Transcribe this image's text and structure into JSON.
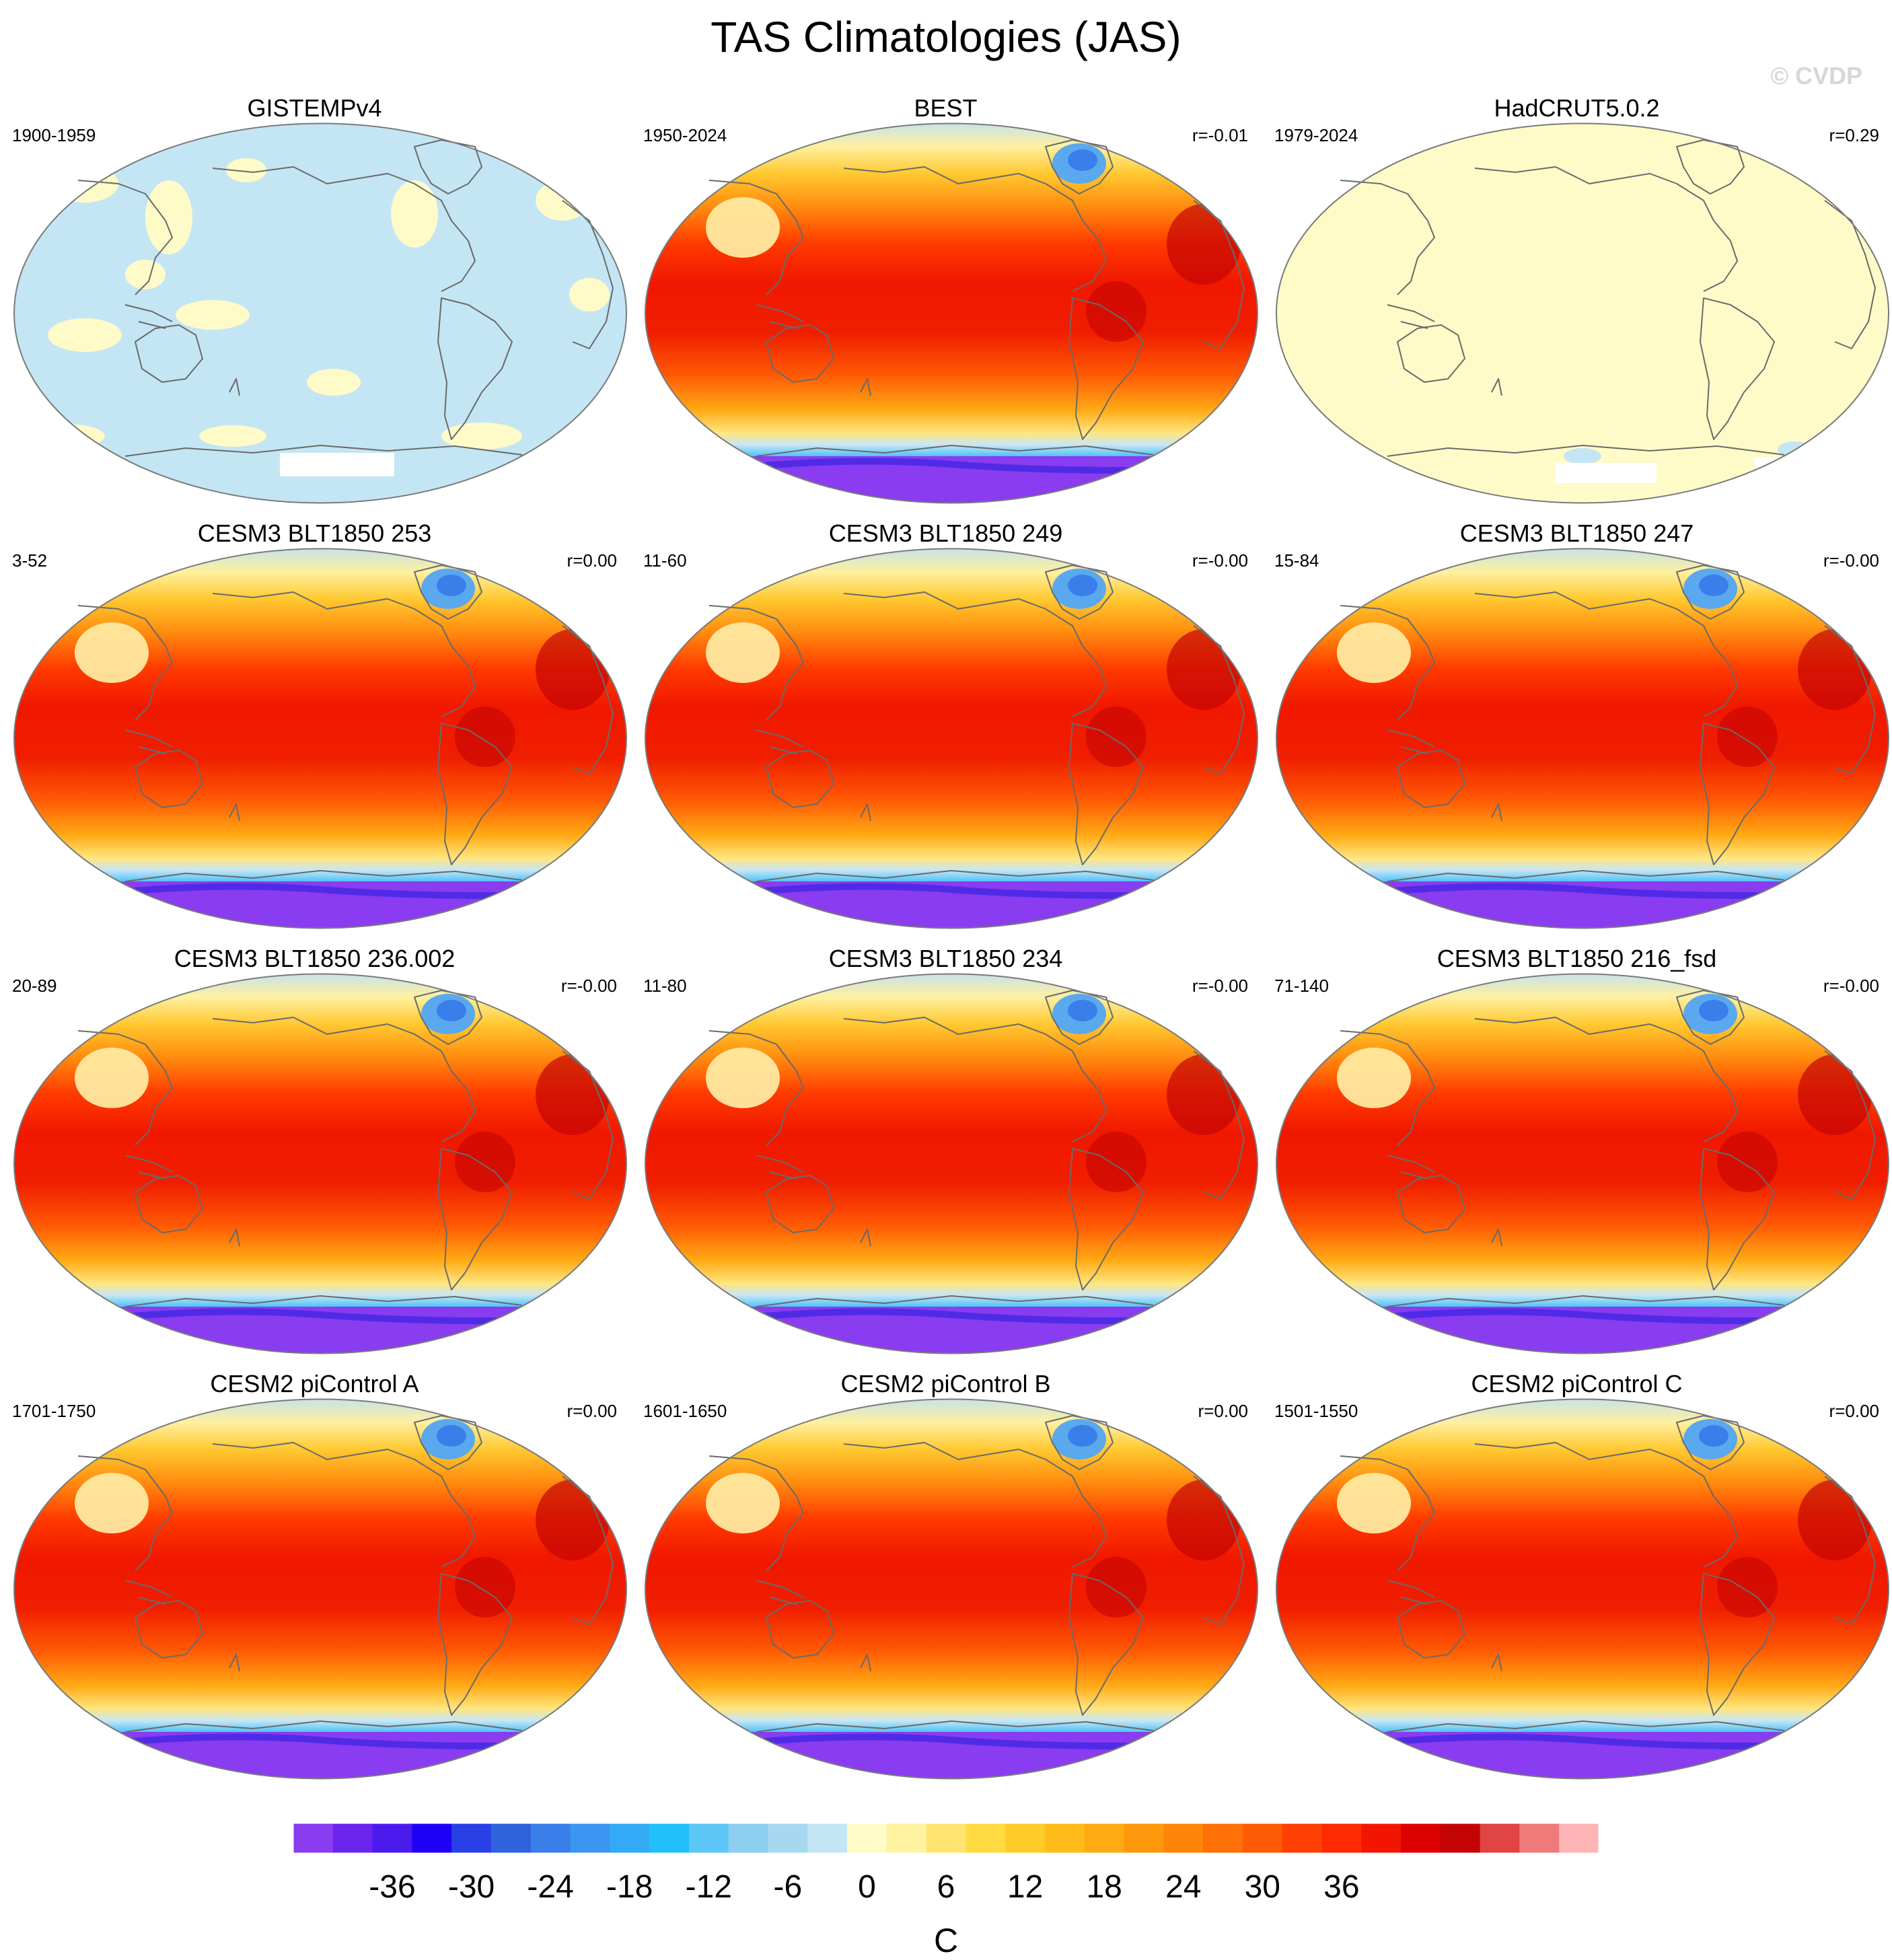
{
  "title": "TAS Climatologies (JAS)",
  "watermark": "© CVDP",
  "colorbar": {
    "unit": "C",
    "tick_labels": [
      "-36",
      "-30",
      "-24",
      "-18",
      "-12",
      "-6",
      "0",
      "6",
      "12",
      "18",
      "24",
      "30",
      "36"
    ],
    "colors": [
      "#8a3cf0",
      "#6a24ee",
      "#4b1bee",
      "#1f00f7",
      "#2840e6",
      "#3062dd",
      "#3a7eea",
      "#3b95f2",
      "#33aaf6",
      "#22c0fa",
      "#5cc6f6",
      "#8ccff0",
      "#a8d8ef",
      "#c4e5f4",
      "#fffbc8",
      "#fff2a0",
      "#ffe570",
      "#ffda40",
      "#ffcb28",
      "#ffbb18",
      "#ffaa12",
      "#ff980c",
      "#ff8508",
      "#ff7006",
      "#ff5a04",
      "#ff4002",
      "#ff2a00",
      "#f21500",
      "#dd0000",
      "#c40404",
      "#e04444",
      "#ee7a7a",
      "#ffb5b5"
    ]
  },
  "panels": [
    {
      "name": "GISTEMPv4",
      "period": "1900-1959",
      "corr": "",
      "style": "anom_cool"
    },
    {
      "name": "BEST",
      "period": "1950-2024",
      "corr": "r=-0.01",
      "style": "clim"
    },
    {
      "name": "HadCRUT5.0.2",
      "period": "1979-2024",
      "corr": "r=0.29",
      "style": "anom_warm"
    },
    {
      "name": "CESM3 BLT1850 253",
      "period": "3-52",
      "corr": "r=0.00",
      "style": "clim"
    },
    {
      "name": "CESM3 BLT1850 249",
      "period": "11-60",
      "corr": "r=-0.00",
      "style": "clim"
    },
    {
      "name": "CESM3 BLT1850 247",
      "period": "15-84",
      "corr": "r=-0.00",
      "style": "clim"
    },
    {
      "name": "CESM3 BLT1850 236.002",
      "period": "20-89",
      "corr": "r=-0.00",
      "style": "clim"
    },
    {
      "name": "CESM3 BLT1850 234",
      "period": "11-80",
      "corr": "r=-0.00",
      "style": "clim"
    },
    {
      "name": "CESM3 BLT1850 216_fsd",
      "period": "71-140",
      "corr": "r=-0.00",
      "style": "clim"
    },
    {
      "name": "CESM2 piControl A",
      "period": "1701-1750",
      "corr": "r=0.00",
      "style": "clim"
    },
    {
      "name": "CESM2 piControl B",
      "period": "1601-1650",
      "corr": "r=0.00",
      "style": "clim"
    },
    {
      "name": "CESM2 piControl C",
      "period": "1501-1550",
      "corr": "r=0.00",
      "style": "clim"
    }
  ]
}
